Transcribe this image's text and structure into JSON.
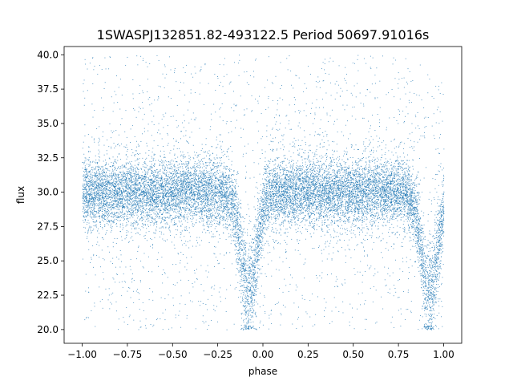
{
  "chart_data": {
    "type": "scatter",
    "title": "1SWASPJ132851.82-493122.5 Period 50697.91016s",
    "xlabel": "phase",
    "ylabel": "flux",
    "xlim": [
      -1.1,
      1.1
    ],
    "ylim": [
      19.0,
      40.6
    ],
    "xticks": [
      -1.0,
      -0.75,
      -0.5,
      -0.25,
      0.0,
      0.25,
      0.5,
      0.75,
      1.0
    ],
    "xtick_labels": [
      "−1.00",
      "−0.75",
      "−0.50",
      "−0.25",
      "0.00",
      "0.25",
      "0.50",
      "0.75",
      "1.00"
    ],
    "yticks": [
      20.0,
      22.5,
      25.0,
      27.5,
      30.0,
      32.5,
      35.0,
      37.5,
      40.0
    ],
    "ytick_labels": [
      "20.0",
      "22.5",
      "25.0",
      "27.5",
      "30.0",
      "32.5",
      "35.0",
      "37.5",
      "40.0"
    ],
    "grid": false,
    "legend": "none",
    "series": [
      {
        "color": "#1f77b4",
        "phase_range": [
          -1.0,
          1.0
        ],
        "baseline_flux": 30.0,
        "baseline_scatter": 1.2,
        "outlier_flux_range": [
          20.0,
          40.0
        ],
        "eclipses": [
          {
            "center_phase": -0.08,
            "min_flux": 20.0,
            "width": 0.06
          },
          {
            "center_phase": 0.92,
            "min_flux": 20.0,
            "width": 0.06
          }
        ],
        "point_count": 16000
      }
    ]
  }
}
